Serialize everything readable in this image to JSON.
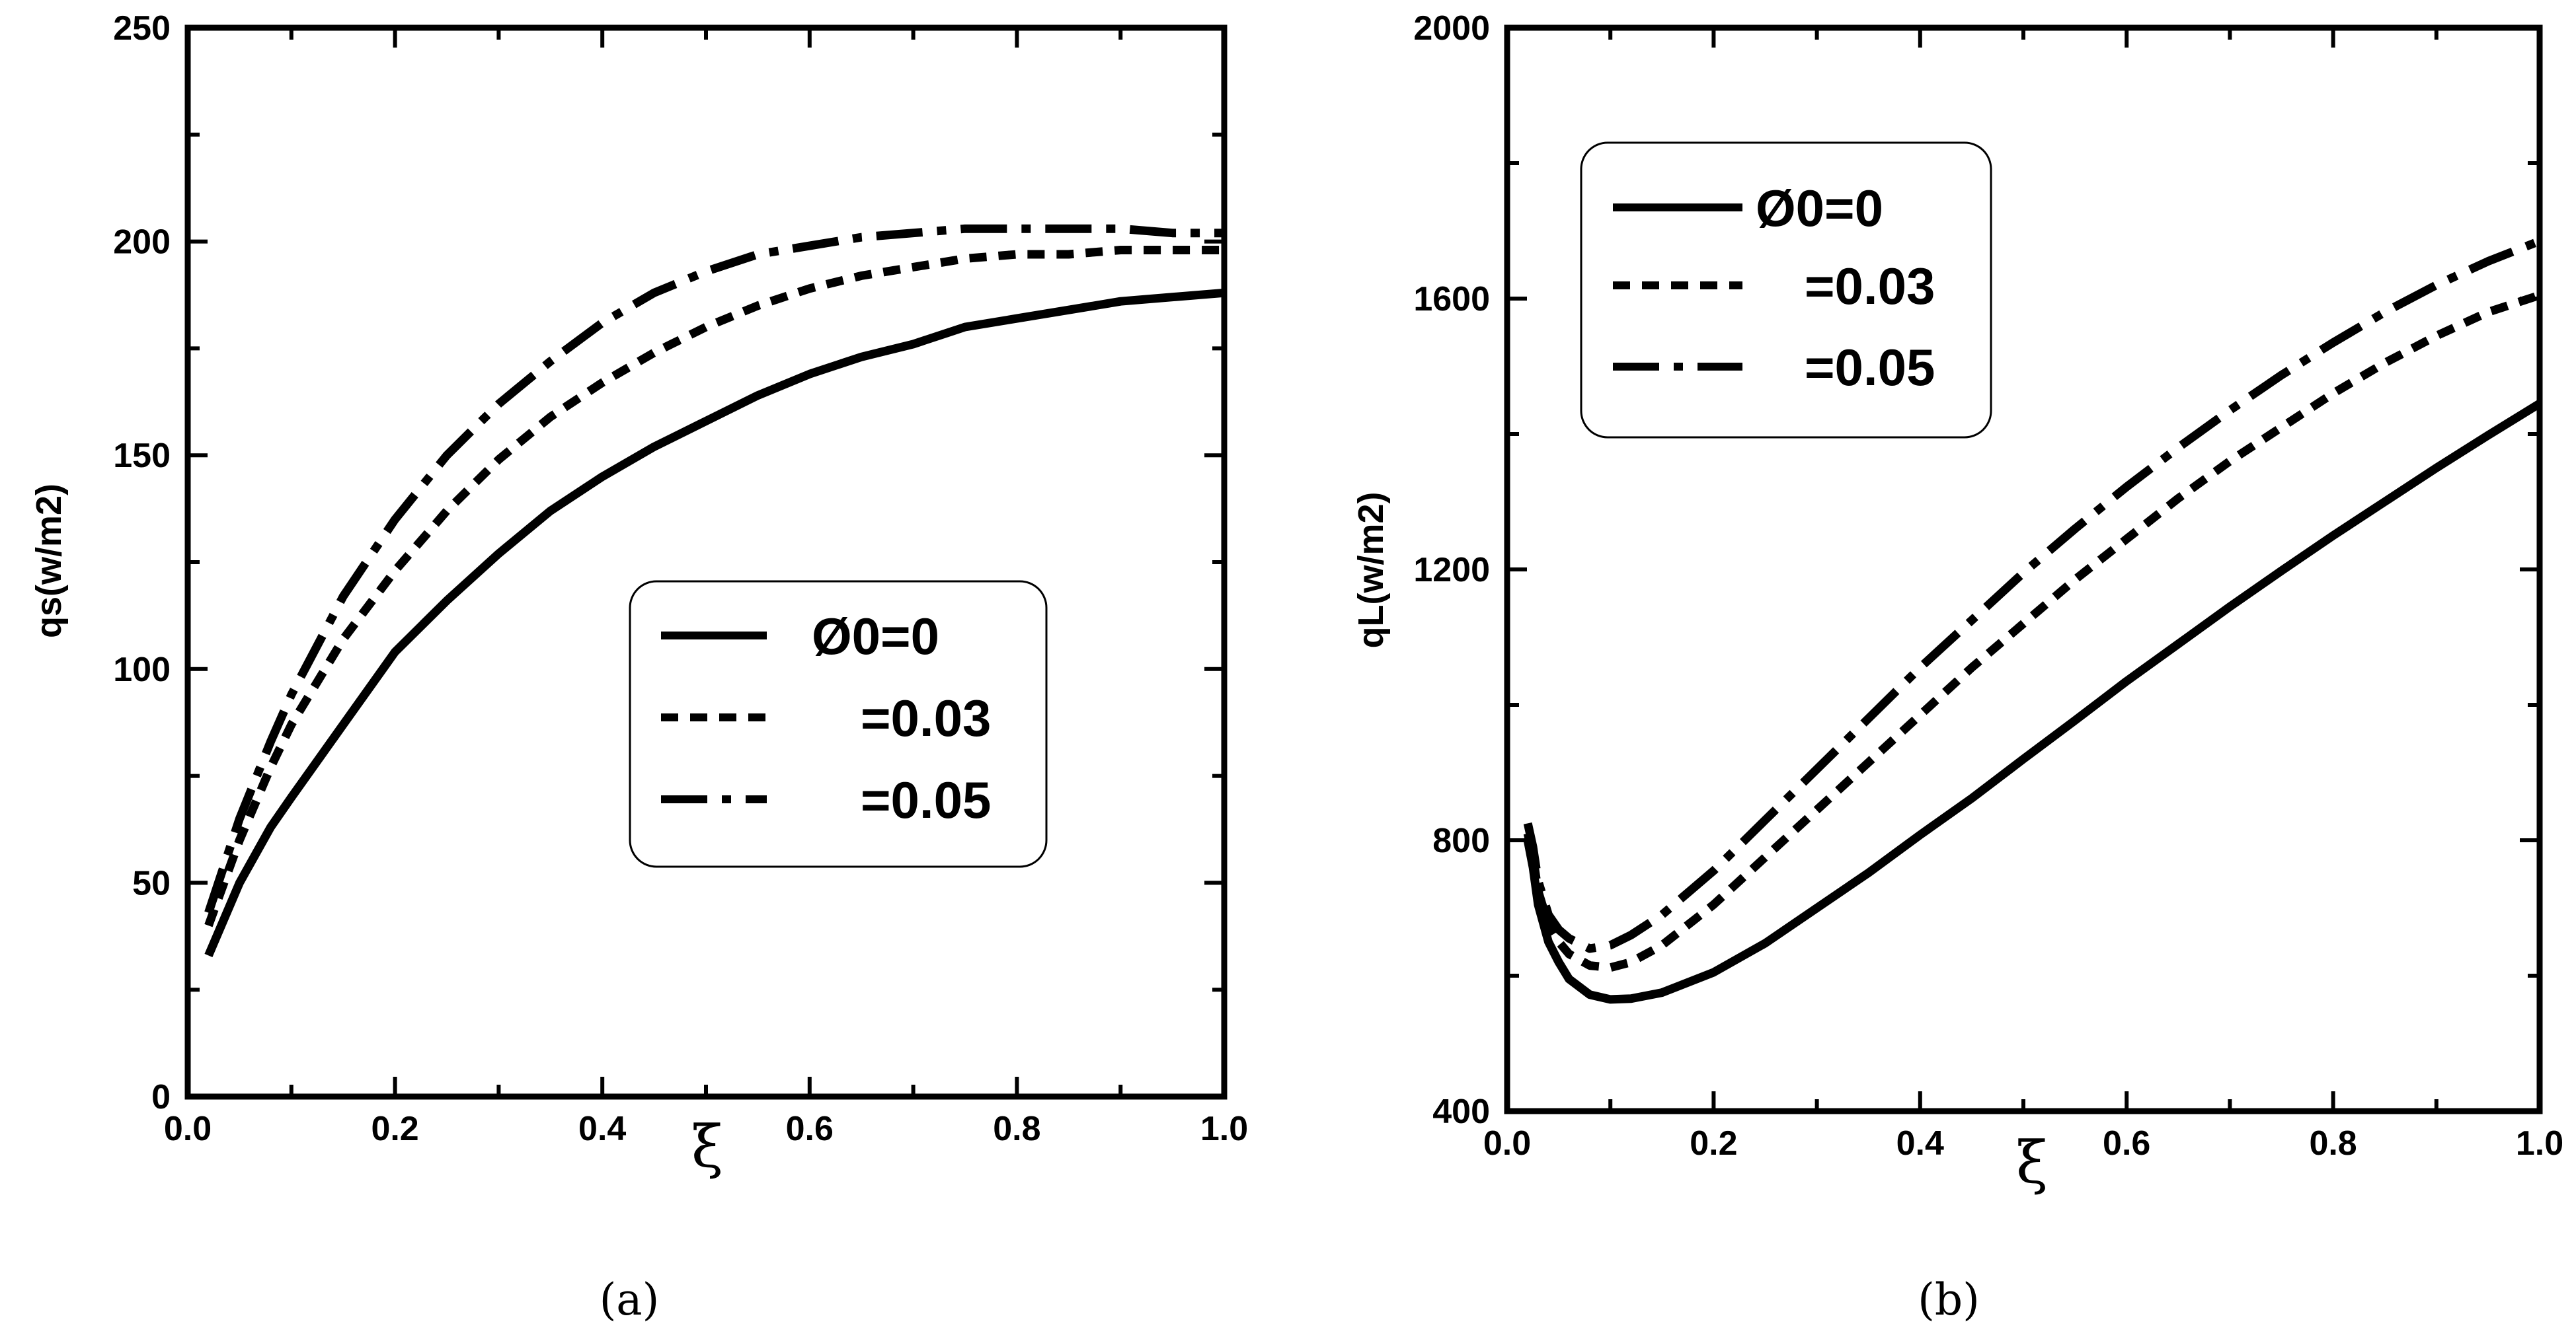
{
  "chart_data": [
    {
      "id": "a",
      "type": "line",
      "caption": "(a)",
      "xlabel": "ξ",
      "ylabel": "qs(w/m2)",
      "xlim": [
        0,
        1
      ],
      "ylim": [
        0,
        250
      ],
      "xticks": [
        0.0,
        0.2,
        0.4,
        0.6,
        0.8,
        1.0
      ],
      "xtick_labels": [
        "0.0",
        "0.2",
        "0.4",
        "0.6",
        "0.8",
        "1.0"
      ],
      "yticks": [
        0,
        50,
        100,
        150,
        200,
        250
      ],
      "ytick_labels": [
        "0",
        "50",
        "100",
        "150",
        "200",
        "250"
      ],
      "legend_placement": "center-right",
      "series": [
        {
          "name": "Ø0=0",
          "style": "solid",
          "x": [
            0.02,
            0.05,
            0.08,
            0.1,
            0.15,
            0.2,
            0.25,
            0.3,
            0.35,
            0.4,
            0.45,
            0.5,
            0.55,
            0.6,
            0.65,
            0.7,
            0.75,
            0.8,
            0.85,
            0.9,
            0.95,
            1.0
          ],
          "y": [
            33,
            50,
            63,
            70,
            87,
            104,
            116,
            127,
            137,
            145,
            152,
            158,
            164,
            169,
            173,
            176,
            180,
            182,
            184,
            186,
            187,
            188
          ]
        },
        {
          "name": "=0.03",
          "style": "dashed",
          "x": [
            0.02,
            0.05,
            0.08,
            0.1,
            0.15,
            0.2,
            0.25,
            0.3,
            0.35,
            0.4,
            0.45,
            0.5,
            0.55,
            0.6,
            0.65,
            0.7,
            0.75,
            0.8,
            0.85,
            0.9,
            0.95,
            1.0
          ],
          "y": [
            40,
            60,
            77,
            87,
            107,
            123,
            137,
            149,
            159,
            167,
            174,
            180,
            185,
            189,
            192,
            194,
            196,
            197,
            197,
            198,
            198,
            198
          ]
        },
        {
          "name": "=0.05",
          "style": "dashdot",
          "x": [
            0.02,
            0.05,
            0.08,
            0.1,
            0.15,
            0.2,
            0.25,
            0.3,
            0.35,
            0.4,
            0.45,
            0.5,
            0.55,
            0.6,
            0.65,
            0.7,
            0.75,
            0.8,
            0.85,
            0.9,
            0.95,
            1.0
          ],
          "y": [
            43,
            65,
            83,
            94,
            117,
            135,
            150,
            162,
            172,
            181,
            188,
            193,
            197,
            199,
            201,
            202,
            203,
            203,
            203,
            203,
            202,
            202
          ]
        }
      ]
    },
    {
      "id": "b",
      "type": "line",
      "caption": "(b)",
      "xlabel": "ξ",
      "ylabel": "qL(w/m2)",
      "xlim": [
        0,
        1
      ],
      "ylim": [
        400,
        2000
      ],
      "xticks": [
        0.0,
        0.2,
        0.4,
        0.6,
        0.8,
        1.0
      ],
      "xtick_labels": [
        "0.0",
        "0.2",
        "0.4",
        "0.6",
        "0.8",
        "1.0"
      ],
      "yticks": [
        400,
        800,
        1200,
        1600,
        2000
      ],
      "ytick_labels": [
        "400",
        "800",
        "1200",
        "1600",
        "2000"
      ],
      "legend_placement": "top-left",
      "series": [
        {
          "name": "Ø0=0",
          "style": "solid",
          "x": [
            0.02,
            0.025,
            0.03,
            0.04,
            0.05,
            0.06,
            0.08,
            0.1,
            0.12,
            0.15,
            0.2,
            0.25,
            0.3,
            0.35,
            0.4,
            0.45,
            0.5,
            0.55,
            0.6,
            0.65,
            0.7,
            0.75,
            0.8,
            0.85,
            0.9,
            0.95,
            1.0
          ],
          "y": [
            800,
            760,
            705,
            650,
            620,
            595,
            572,
            565,
            566,
            575,
            605,
            648,
            700,
            752,
            808,
            862,
            920,
            977,
            1035,
            1090,
            1145,
            1198,
            1250,
            1300,
            1350,
            1398,
            1445
          ]
        },
        {
          "name": "=0.03",
          "style": "dashed",
          "x": [
            0.02,
            0.025,
            0.03,
            0.04,
            0.05,
            0.06,
            0.08,
            0.1,
            0.12,
            0.15,
            0.2,
            0.25,
            0.3,
            0.35,
            0.4,
            0.45,
            0.5,
            0.55,
            0.6,
            0.65,
            0.7,
            0.75,
            0.8,
            0.85,
            0.9,
            0.95,
            1.0
          ],
          "y": [
            810,
            775,
            725,
            675,
            650,
            632,
            615,
            612,
            620,
            645,
            705,
            775,
            845,
            915,
            985,
            1055,
            1120,
            1185,
            1245,
            1305,
            1360,
            1410,
            1460,
            1505,
            1545,
            1580,
            1605
          ]
        },
        {
          "name": "=0.05",
          "style": "dashdot",
          "x": [
            0.02,
            0.025,
            0.03,
            0.04,
            0.05,
            0.06,
            0.08,
            0.1,
            0.12,
            0.15,
            0.2,
            0.25,
            0.3,
            0.35,
            0.4,
            0.45,
            0.5,
            0.55,
            0.6,
            0.65,
            0.7,
            0.75,
            0.8,
            0.85,
            0.9,
            0.95,
            1.0
          ],
          "y": [
            825,
            790,
            740,
            690,
            668,
            655,
            640,
            645,
            660,
            690,
            755,
            830,
            905,
            980,
            1055,
            1125,
            1195,
            1260,
            1322,
            1380,
            1435,
            1487,
            1535,
            1580,
            1620,
            1655,
            1685
          ]
        }
      ]
    }
  ]
}
